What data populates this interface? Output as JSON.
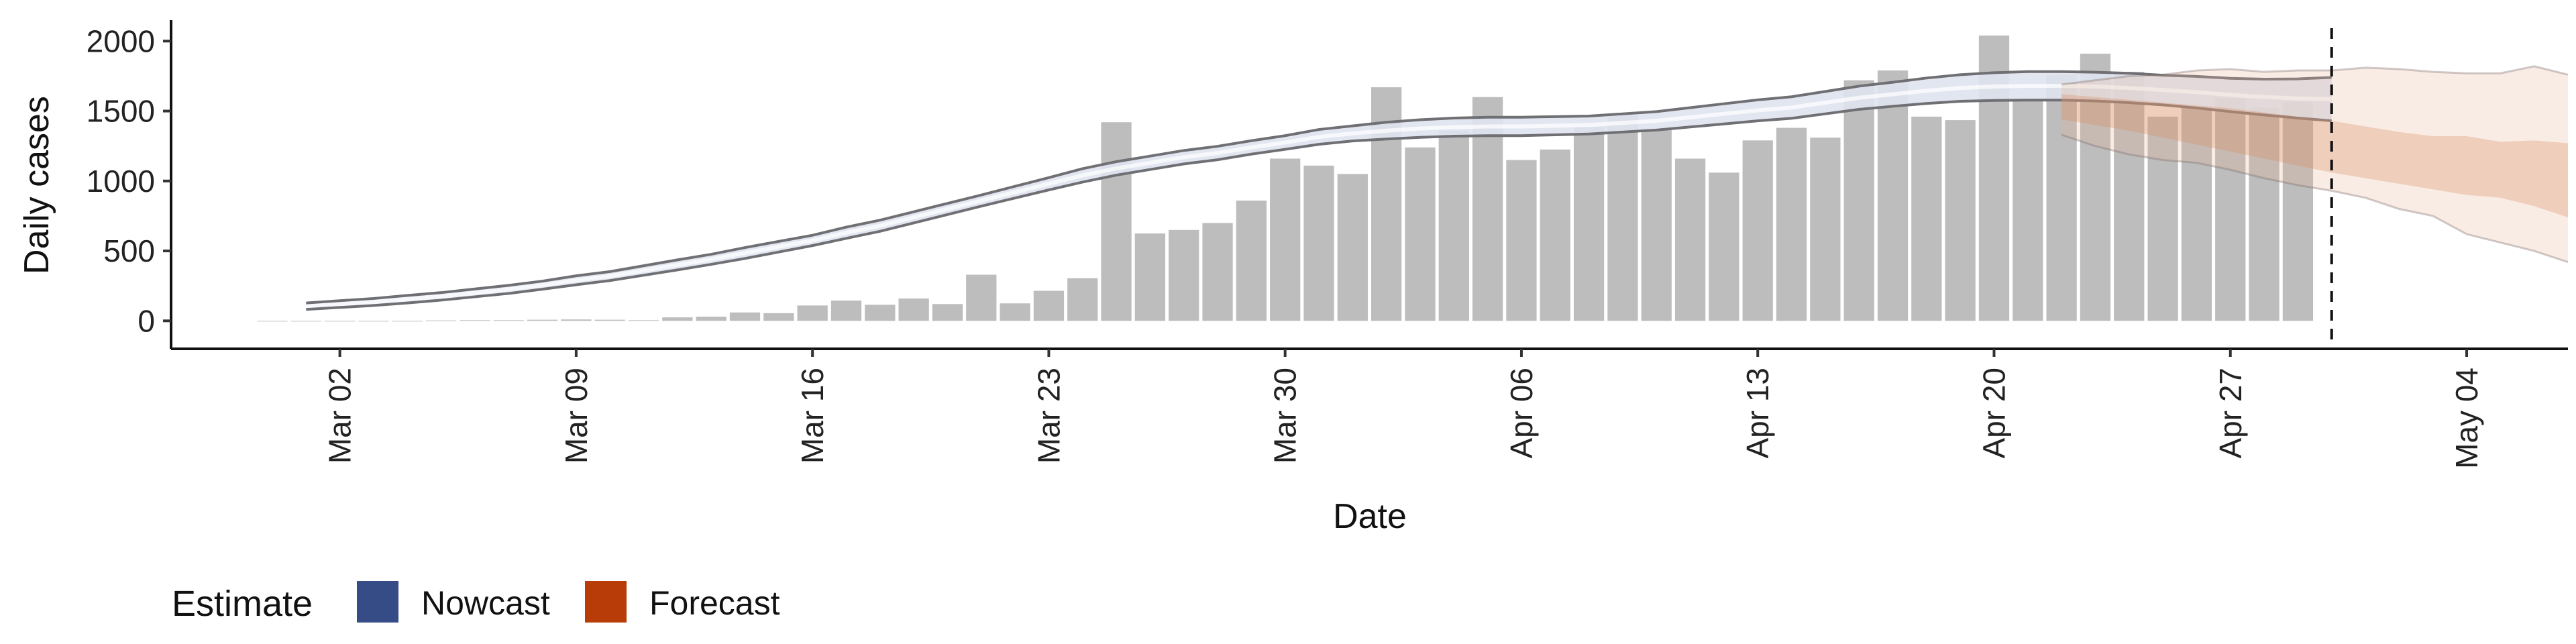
{
  "chart_data": {
    "type": "bar",
    "xlabel": "Date",
    "ylabel": "Daily cases",
    "x_start_date": "2020-02-29",
    "xlim": [
      "2020-02-26",
      "2020-05-07"
    ],
    "ylim": [
      -200,
      2150
    ],
    "y_ticks": [
      0,
      500,
      1000,
      1500,
      2000
    ],
    "x_ticks": [
      {
        "date": "2020-03-02",
        "label": "Mar 02"
      },
      {
        "date": "2020-03-09",
        "label": "Mar 09"
      },
      {
        "date": "2020-03-16",
        "label": "Mar 16"
      },
      {
        "date": "2020-03-23",
        "label": "Mar 23"
      },
      {
        "date": "2020-03-30",
        "label": "Mar 30"
      },
      {
        "date": "2020-04-06",
        "label": "Apr 06"
      },
      {
        "date": "2020-04-13",
        "label": "Apr 13"
      },
      {
        "date": "2020-04-20",
        "label": "Apr 20"
      },
      {
        "date": "2020-04-27",
        "label": "Apr 27"
      },
      {
        "date": "2020-05-04",
        "label": "May 04"
      }
    ],
    "daily_cases": [
      0,
      0,
      0,
      0,
      0,
      3,
      5,
      5,
      8,
      10,
      8,
      5,
      25,
      30,
      60,
      55,
      110,
      145,
      115,
      160,
      120,
      330,
      125,
      215,
      305,
      1420,
      625,
      650,
      700,
      860,
      1160,
      1110,
      1050,
      1670,
      1240,
      1360,
      1600,
      1150,
      1225,
      1385,
      1465,
      1375,
      1160,
      1060,
      1290,
      1380,
      1310,
      1720,
      1790,
      1460,
      1435,
      2040,
      1580,
      1760,
      1910,
      1780,
      1460,
      1530,
      1590,
      1525,
      1565
    ],
    "reference_line_date": "2020-04-30",
    "grid": false,
    "legend": {
      "title": "Estimate",
      "position": "bottom-left",
      "entries": [
        {
          "label": "Nowcast",
          "color": "#354c86"
        },
        {
          "label": "Forecast",
          "color": "#b83c08"
        }
      ]
    },
    "series": [
      {
        "name": "Nowcast",
        "start_date": "2020-03-01",
        "median": [
          105,
          120,
          135,
          155,
          175,
          200,
          225,
          255,
          290,
          320,
          360,
          400,
          440,
          485,
          530,
          575,
          630,
          680,
          740,
          800,
          860,
          920,
          980,
          1040,
          1090,
          1130,
          1170,
          1200,
          1240,
          1275,
          1315,
          1340,
          1360,
          1375,
          1385,
          1390,
          1390,
          1395,
          1400,
          1415,
          1430,
          1455,
          1480,
          1505,
          1525,
          1560,
          1595,
          1620,
          1645,
          1665,
          1675,
          1680,
          1680,
          1675,
          1665,
          1650,
          1635,
          1615,
          1600,
          1590,
          1585
        ],
        "lower_90": [
          82,
          96,
          110,
          128,
          148,
          172,
          196,
          226,
          258,
          288,
          326,
          364,
          404,
          446,
          492,
          538,
          590,
          640,
          700,
          760,
          820,
          878,
          936,
          992,
          1042,
          1082,
          1122,
          1152,
          1192,
          1226,
          1262,
          1286,
          1300,
          1312,
          1320,
          1324,
          1324,
          1330,
          1336,
          1350,
          1364,
          1386,
          1408,
          1430,
          1448,
          1480,
          1512,
          1534,
          1554,
          1570,
          1576,
          1578,
          1578,
          1572,
          1560,
          1544,
          1522,
          1496,
          1472,
          1450,
          1430
        ],
        "upper_90": [
          128,
          144,
          160,
          182,
          202,
          228,
          254,
          284,
          322,
          352,
          394,
          436,
          476,
          524,
          568,
          612,
          670,
          720,
          780,
          840,
          900,
          962,
          1024,
          1088,
          1138,
          1178,
          1218,
          1248,
          1288,
          1324,
          1368,
          1394,
          1420,
          1438,
          1450,
          1456,
          1456,
          1460,
          1464,
          1480,
          1496,
          1524,
          1552,
          1580,
          1602,
          1640,
          1678,
          1706,
          1736,
          1760,
          1774,
          1782,
          1782,
          1778,
          1770,
          1756,
          1748,
          1734,
          1728,
          1730,
          1740
        ]
      },
      {
        "name": "Forecast",
        "start_date": "2020-04-22",
        "median": [
          1560,
          1530,
          1500,
          1470,
          1430,
          1400,
          1370,
          1330,
          1290,
          1240,
          1190,
          1150,
          1110,
          1070,
          1030,
          1000
        ],
        "lower_50": [
          1440,
          1400,
          1360,
          1310,
          1260,
          1210,
          1160,
          1110,
          1060,
          1020,
          980,
          940,
          900,
          880,
          820,
          740
        ],
        "upper_50": [
          1620,
          1600,
          1580,
          1560,
          1540,
          1520,
          1490,
          1460,
          1430,
          1390,
          1350,
          1320,
          1320,
          1280,
          1290,
          1270
        ],
        "lower_90": [
          1330,
          1250,
          1190,
          1150,
          1130,
          1080,
          1020,
          970,
          930,
          880,
          800,
          750,
          620,
          560,
          500,
          420
        ],
        "upper_90": [
          1690,
          1720,
          1750,
          1760,
          1790,
          1800,
          1780,
          1790,
          1790,
          1810,
          1800,
          1780,
          1770,
          1770,
          1820,
          1760
        ]
      }
    ]
  }
}
